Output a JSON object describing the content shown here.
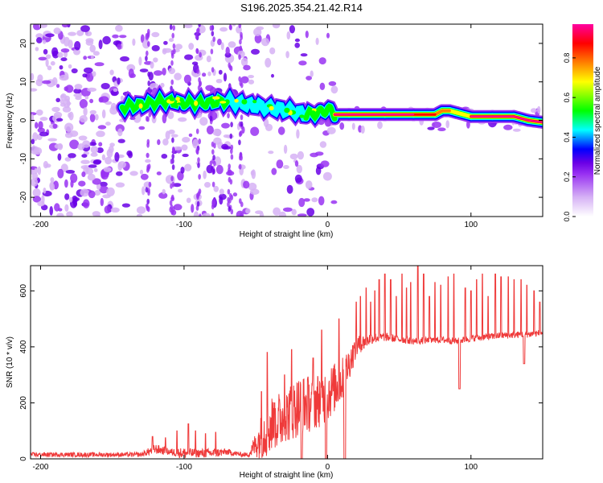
{
  "figure_title": "S196.2025.354.21.42.R14",
  "chart_data": [
    {
      "type": "heatmap",
      "xlabel": "Height of straight line (km)",
      "ylabel": "Frequency (Hz)",
      "xlim": [
        -207,
        150
      ],
      "ylim": [
        -25,
        25
      ],
      "xticks": [
        -200,
        -100,
        0,
        100
      ],
      "yticks": [
        -20,
        -10,
        0,
        10,
        20
      ],
      "colorbar": {
        "label": "Normalized spectral amplitude",
        "range": [
          0.0,
          0.97
        ],
        "ticks": [
          0.0,
          0.2,
          0.4,
          0.6,
          0.8
        ],
        "colors": [
          "#ffffff",
          "#d6b2f5",
          "#9932f2",
          "#6a00e6",
          "#0000ff",
          "#00ffff",
          "#00ff00",
          "#ffff00",
          "#ff8000",
          "#ff0000",
          "#ff00a0"
        ]
      },
      "ridge": {
        "name": "peak frequency track",
        "x": [
          -143,
          -130,
          -115,
          -100,
          -85,
          -70,
          -55,
          -45,
          -35,
          -25,
          -15,
          -5,
          0,
          5,
          15,
          40,
          60,
          75,
          80,
          85,
          90,
          100,
          115,
          130,
          140,
          150
        ],
        "y": [
          3.5,
          4.0,
          5.0,
          4.5,
          4.5,
          5.0,
          4.0,
          3.5,
          3.0,
          2.5,
          1.5,
          2.0,
          3.0,
          1.5,
          1.5,
          1.5,
          1.5,
          1.5,
          2.5,
          2.5,
          2.0,
          1.0,
          1.0,
          1.0,
          0.0,
          -0.5
        ],
        "amplitude": [
          0.5,
          0.55,
          0.6,
          0.5,
          0.5,
          0.6,
          0.45,
          0.45,
          0.4,
          0.4,
          0.5,
          0.5,
          0.55,
          0.95,
          0.95,
          0.95,
          0.95,
          0.9,
          0.8,
          0.75,
          0.7,
          0.95,
          0.95,
          0.95,
          0.95,
          0.95
        ]
      }
    },
    {
      "type": "line",
      "xlabel": "Height of straight line (km)",
      "ylabel": "SNR (10 * v/v)",
      "xlim": [
        -207,
        150
      ],
      "ylim": [
        0,
        690
      ],
      "xticks": [
        -200,
        -100,
        0,
        100
      ],
      "yticks": [
        0,
        200,
        400,
        600
      ],
      "series": [
        {
          "name": "SNR",
          "color": "#ef3a3a",
          "baseline_x": [
            -207,
            -130,
            -120,
            -110,
            -100,
            -90,
            -80,
            -70,
            -60,
            -55,
            -45,
            -40,
            -30,
            -20,
            -10,
            0,
            10,
            20,
            30,
            40,
            60,
            80,
            90,
            100,
            120,
            140,
            150
          ],
          "baseline_y": [
            15,
            15,
            35,
            25,
            20,
            20,
            20,
            25,
            15,
            15,
            90,
            120,
            150,
            190,
            200,
            230,
            280,
            400,
            430,
            435,
            420,
            425,
            420,
            430,
            440,
            445,
            450
          ],
          "noise": [
            8,
            8,
            18,
            12,
            20,
            15,
            18,
            12,
            8,
            8,
            90,
            110,
            100,
            110,
            100,
            100,
            80,
            40,
            20,
            15,
            12,
            12,
            12,
            12,
            12,
            12,
            12
          ],
          "spike_x": [
            -122,
            -113,
            -105,
            -97,
            -92,
            -85,
            -78,
            -46,
            -42,
            -37,
            -30,
            -25,
            -18,
            -10,
            -4,
            8,
            20,
            23,
            27,
            30,
            33,
            36,
            40,
            44,
            48,
            52,
            55,
            58,
            63,
            67,
            71,
            75,
            79,
            84,
            88,
            92,
            96,
            100,
            104,
            108,
            112,
            117,
            121,
            126,
            130,
            135,
            139,
            144,
            148
          ],
          "spike_y": [
            80,
            75,
            100,
            125,
            100,
            90,
            95,
            240,
            380,
            200,
            300,
            390,
            420,
            360,
            460,
            500,
            560,
            580,
            610,
            560,
            600,
            640,
            660,
            640,
            580,
            660,
            610,
            630,
            690,
            660,
            580,
            630,
            620,
            650,
            660,
            610,
            610,
            600,
            640,
            660,
            580,
            660,
            650,
            650,
            640,
            640,
            620,
            600,
            560
          ],
          "dip_x": [
            -18,
            -1,
            12,
            92,
            137
          ],
          "dip_y": [
            0,
            0,
            0,
            250,
            340
          ]
        }
      ]
    }
  ]
}
